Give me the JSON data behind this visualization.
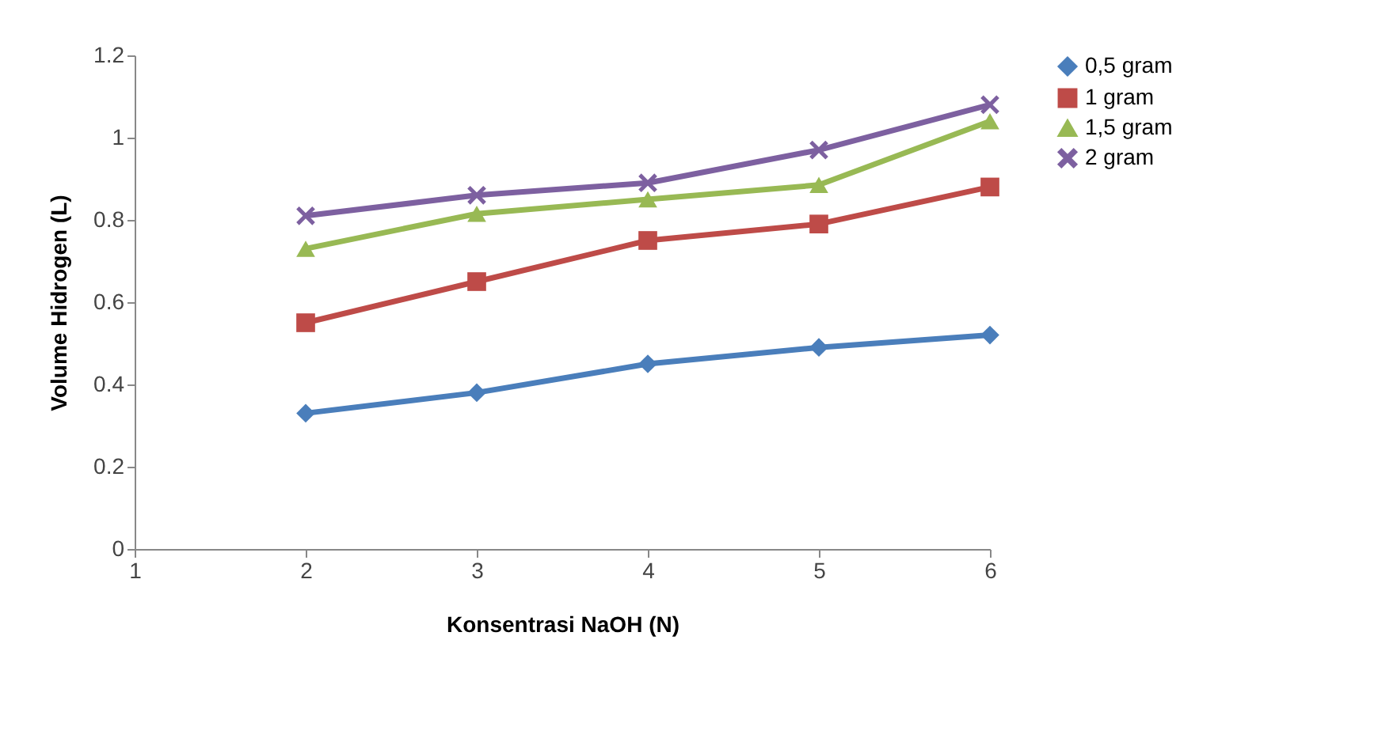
{
  "chart_data": {
    "type": "line",
    "xlabel": "Konsentrasi NaOH (N)",
    "ylabel": "Volume Hidrogen (L)",
    "x": [
      2,
      3,
      4,
      5,
      6
    ],
    "xlim": [
      1,
      6
    ],
    "xticks": [
      1,
      2,
      3,
      4,
      5,
      6
    ],
    "ylim": [
      0,
      1.2
    ],
    "yticks": [
      0,
      0.2,
      0.4,
      0.6,
      0.8,
      1,
      1.2
    ],
    "grid": false,
    "legend": "right",
    "line_style": "solid",
    "series": [
      {
        "name": "0,5 gram",
        "color": "#4a7ebb",
        "marker": "diamond",
        "values": [
          0.33,
          0.38,
          0.45,
          0.49,
          0.52
        ]
      },
      {
        "name": "1 gram",
        "color": "#be4b48",
        "marker": "square",
        "values": [
          0.55,
          0.65,
          0.75,
          0.79,
          0.88
        ]
      },
      {
        "name": "1,5 gram",
        "color": "#98b954",
        "marker": "triangle",
        "values": [
          0.73,
          0.815,
          0.85,
          0.885,
          1.04
        ]
      },
      {
        "name": "2 gram",
        "color": "#7d60a0",
        "marker": "cross",
        "values": [
          0.81,
          0.86,
          0.89,
          0.97,
          1.08
        ]
      }
    ]
  }
}
